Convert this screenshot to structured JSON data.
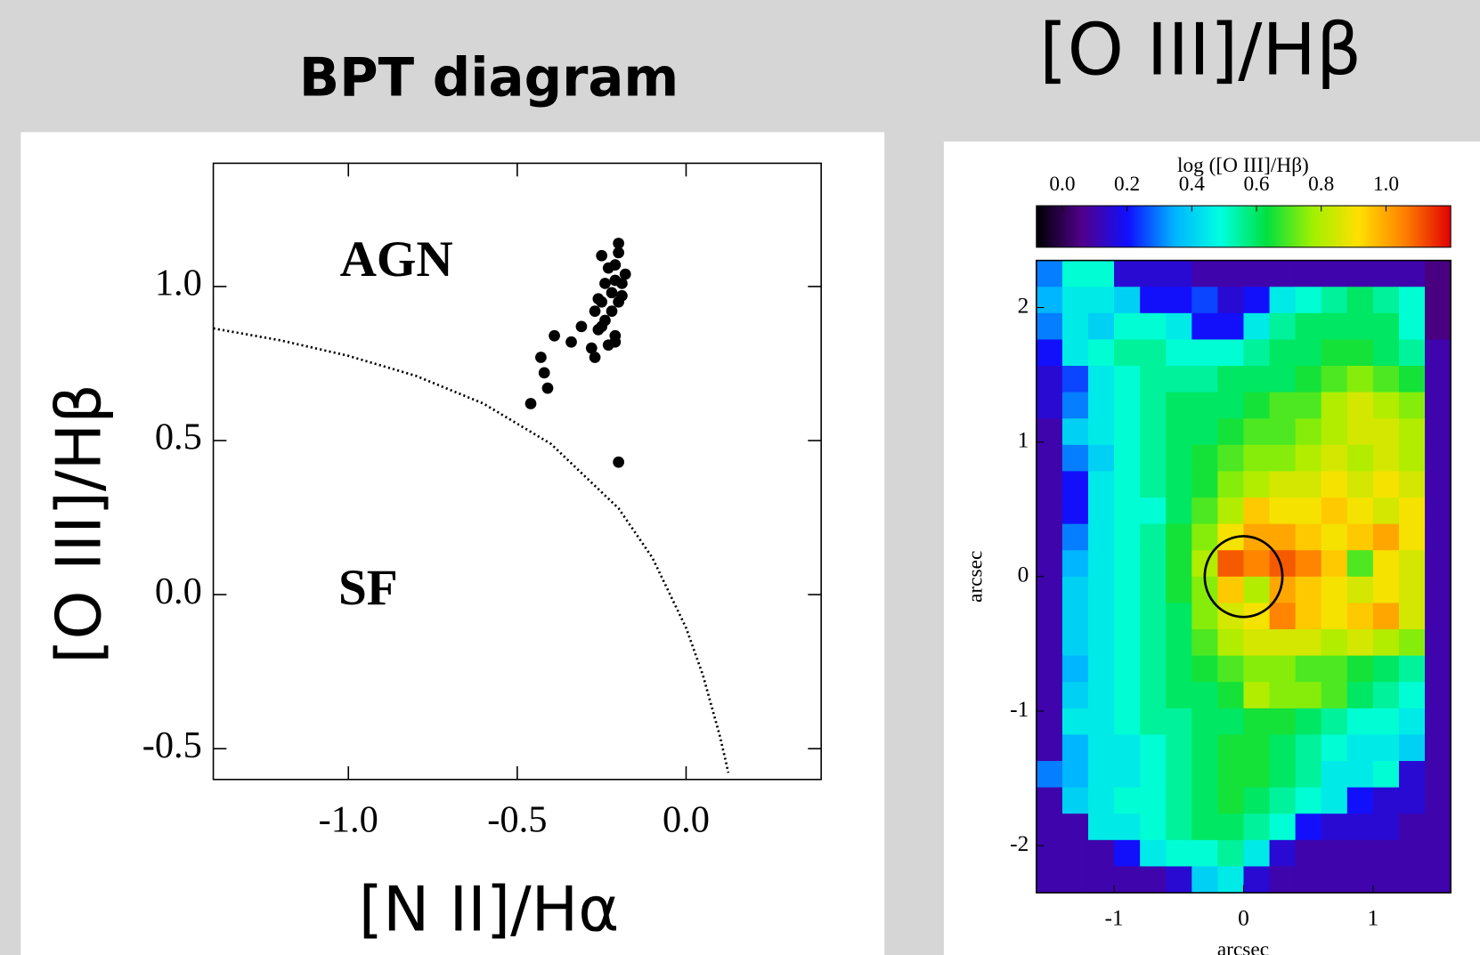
{
  "chart_data": [
    {
      "type": "scatter",
      "title": "BPT diagram",
      "xlabel": "[N II]/Hα",
      "ylabel": "[O III]/Hβ",
      "annotations": [
        "AGN",
        "SF"
      ],
      "x": [
        -0.46,
        -0.43,
        -0.42,
        -0.41,
        -0.39,
        -0.34,
        -0.31,
        -0.28,
        -0.27,
        -0.27,
        -0.26,
        -0.25,
        -0.25,
        -0.24,
        -0.24,
        -0.23,
        -0.22,
        -0.22,
        -0.21,
        -0.21,
        -0.21,
        -0.2,
        -0.2,
        -0.2,
        -0.19,
        -0.18,
        -0.25,
        -0.23,
        -0.2,
        -0.26,
        -0.21,
        -0.19
      ],
      "y": [
        0.62,
        0.77,
        0.72,
        0.67,
        0.84,
        0.82,
        0.87,
        0.8,
        0.77,
        0.92,
        0.86,
        1.1,
        0.95,
        1.01,
        0.89,
        1.06,
        0.98,
        0.92,
        0.84,
        1.02,
        0.82,
        0.43,
        0.95,
        1.14,
        1.01,
        1.04,
        0.87,
        0.81,
        1.11,
        0.96,
        1.07,
        0.97
      ],
      "color": "#000000",
      "demarcation": {
        "x": [
          -1.4,
          -1.2,
          -1.0,
          -0.8,
          -0.6,
          -0.4,
          -0.2,
          -0.1,
          0.0,
          0.05,
          0.1,
          0.12,
          0.125
        ],
        "y": [
          0.864,
          0.825,
          0.775,
          0.71,
          0.62,
          0.489,
          0.28,
          0.12,
          -0.108,
          -0.262,
          -0.459,
          -0.553,
          -0.578
        ]
      },
      "xlim": [
        -1.4,
        0.4
      ],
      "ylim": [
        -0.6,
        1.4
      ],
      "xticks": [
        {
          "value": -1,
          "label": "-1.0"
        },
        -0.5,
        {
          "value": 0,
          "label": "0.0"
        }
      ],
      "yticks": [
        -0.5,
        {
          "value": 0,
          "label": "0.0"
        },
        0.5,
        {
          "value": 1,
          "label": "1.0"
        }
      ]
    },
    {
      "type": "heatmap",
      "title": "[O III]/Hβ",
      "colorbar_label": "log ([O III]/Hβ)",
      "clim": [
        -0.08,
        1.2
      ],
      "cticks": [
        {
          "value": 0,
          "label": "0.0"
        },
        0.2,
        0.4,
        0.6,
        0.8,
        {
          "value": 1,
          "label": "1.0"
        }
      ],
      "colormap": [
        "#000000",
        "#50008c",
        "#1010ff",
        "#00b4ff",
        "#00ffe0",
        "#00e040",
        "#a0f000",
        "#ffe000",
        "#ff8000",
        "#e00000"
      ],
      "xlim": [
        -1.6,
        1.6
      ],
      "ylim": [
        -2.35,
        2.35
      ],
      "xticks": [
        -1,
        0,
        1
      ],
      "yticks": [
        -2,
        -1,
        0,
        1,
        2
      ],
      "xlabel": "arcsec",
      "ylabel": "arcsec",
      "circle": {
        "x": 0,
        "y": 0,
        "r": 0.3
      },
      "z": [
        [
          0.3,
          0.5,
          0.5,
          0.15,
          0.15,
          0.15,
          0.1,
          0.1,
          0.1,
          0.1,
          0.1,
          0.1,
          0.1,
          0.1,
          0.1,
          0.05
        ],
        [
          0.35,
          0.45,
          0.45,
          0.4,
          0.2,
          0.2,
          0.25,
          0.15,
          0.2,
          0.45,
          0.5,
          0.55,
          0.6,
          0.55,
          0.5,
          0.05
        ],
        [
          0.3,
          0.45,
          0.4,
          0.5,
          0.5,
          0.45,
          0.2,
          0.2,
          0.45,
          0.55,
          0.6,
          0.6,
          0.6,
          0.6,
          0.5,
          0.05
        ],
        [
          0.2,
          0.45,
          0.5,
          0.55,
          0.55,
          0.5,
          0.5,
          0.5,
          0.55,
          0.6,
          0.6,
          0.65,
          0.65,
          0.6,
          0.55,
          0.1
        ],
        [
          0.15,
          0.25,
          0.45,
          0.5,
          0.55,
          0.55,
          0.55,
          0.6,
          0.6,
          0.6,
          0.65,
          0.7,
          0.75,
          0.7,
          0.65,
          0.1
        ],
        [
          0.15,
          0.3,
          0.45,
          0.5,
          0.55,
          0.6,
          0.6,
          0.6,
          0.65,
          0.7,
          0.7,
          0.8,
          0.85,
          0.8,
          0.75,
          0.1
        ],
        [
          0.1,
          0.4,
          0.45,
          0.5,
          0.55,
          0.6,
          0.6,
          0.65,
          0.7,
          0.7,
          0.75,
          0.8,
          0.85,
          0.85,
          0.8,
          0.1
        ],
        [
          0.1,
          0.3,
          0.4,
          0.5,
          0.55,
          0.6,
          0.65,
          0.7,
          0.75,
          0.75,
          0.8,
          0.85,
          0.8,
          0.85,
          0.8,
          0.1
        ],
        [
          0.1,
          0.2,
          0.45,
          0.5,
          0.55,
          0.6,
          0.65,
          0.75,
          0.8,
          0.85,
          0.85,
          0.9,
          0.85,
          0.9,
          0.85,
          0.1
        ],
        [
          0.1,
          0.2,
          0.45,
          0.5,
          0.5,
          0.6,
          0.7,
          0.8,
          0.95,
          0.9,
          0.9,
          0.95,
          0.9,
          0.85,
          0.9,
          0.1
        ],
        [
          0.1,
          0.3,
          0.45,
          0.5,
          0.55,
          0.65,
          0.75,
          0.9,
          1.0,
          1.0,
          0.95,
          0.9,
          0.95,
          1.0,
          0.9,
          0.1
        ],
        [
          0.1,
          0.35,
          0.45,
          0.5,
          0.55,
          0.65,
          0.8,
          1.1,
          1.05,
          1.1,
          1.05,
          0.95,
          0.7,
          0.9,
          0.85,
          0.1
        ],
        [
          0.1,
          0.4,
          0.45,
          0.5,
          0.55,
          0.65,
          0.75,
          0.95,
          0.8,
          1.0,
          0.95,
          0.9,
          0.85,
          0.9,
          0.85,
          0.1
        ],
        [
          0.1,
          0.4,
          0.45,
          0.5,
          0.55,
          0.6,
          0.75,
          0.85,
          0.9,
          1.05,
          0.95,
          0.9,
          0.95,
          1.0,
          0.85,
          0.1
        ],
        [
          0.1,
          0.4,
          0.45,
          0.5,
          0.55,
          0.6,
          0.7,
          0.8,
          0.85,
          0.85,
          0.85,
          0.8,
          0.85,
          0.8,
          0.75,
          0.1
        ],
        [
          0.1,
          0.35,
          0.45,
          0.5,
          0.55,
          0.6,
          0.65,
          0.7,
          0.75,
          0.75,
          0.7,
          0.7,
          0.65,
          0.6,
          0.55,
          0.1
        ],
        [
          0.1,
          0.4,
          0.45,
          0.5,
          0.55,
          0.6,
          0.6,
          0.65,
          0.8,
          0.75,
          0.75,
          0.7,
          0.6,
          0.55,
          0.5,
          0.1
        ],
        [
          0.1,
          0.45,
          0.45,
          0.5,
          0.55,
          0.55,
          0.6,
          0.6,
          0.65,
          0.65,
          0.6,
          0.55,
          0.5,
          0.5,
          0.45,
          0.1
        ],
        [
          0.1,
          0.35,
          0.45,
          0.45,
          0.5,
          0.55,
          0.6,
          0.65,
          0.65,
          0.6,
          0.55,
          0.5,
          0.45,
          0.45,
          0.4,
          0.1
        ],
        [
          0.3,
          0.35,
          0.45,
          0.45,
          0.5,
          0.55,
          0.6,
          0.65,
          0.65,
          0.6,
          0.55,
          0.45,
          0.45,
          0.5,
          0.15,
          0.1
        ],
        [
          0.1,
          0.4,
          0.45,
          0.5,
          0.5,
          0.55,
          0.6,
          0.65,
          0.6,
          0.55,
          0.5,
          0.45,
          0.2,
          0.15,
          0.15,
          0.1
        ],
        [
          0.1,
          0.1,
          0.45,
          0.45,
          0.5,
          0.55,
          0.6,
          0.6,
          0.55,
          0.5,
          0.2,
          0.15,
          0.15,
          0.15,
          0.1,
          0.1
        ],
        [
          0.1,
          0.1,
          0.1,
          0.2,
          0.45,
          0.5,
          0.5,
          0.55,
          0.45,
          0.15,
          0.1,
          0.1,
          0.1,
          0.1,
          0.1,
          0.1
        ],
        [
          0.1,
          0.1,
          0.1,
          0.1,
          0.1,
          0.15,
          0.4,
          0.45,
          0.15,
          0.1,
          0.1,
          0.1,
          0.1,
          0.1,
          0.1,
          0.1
        ]
      ]
    }
  ]
}
